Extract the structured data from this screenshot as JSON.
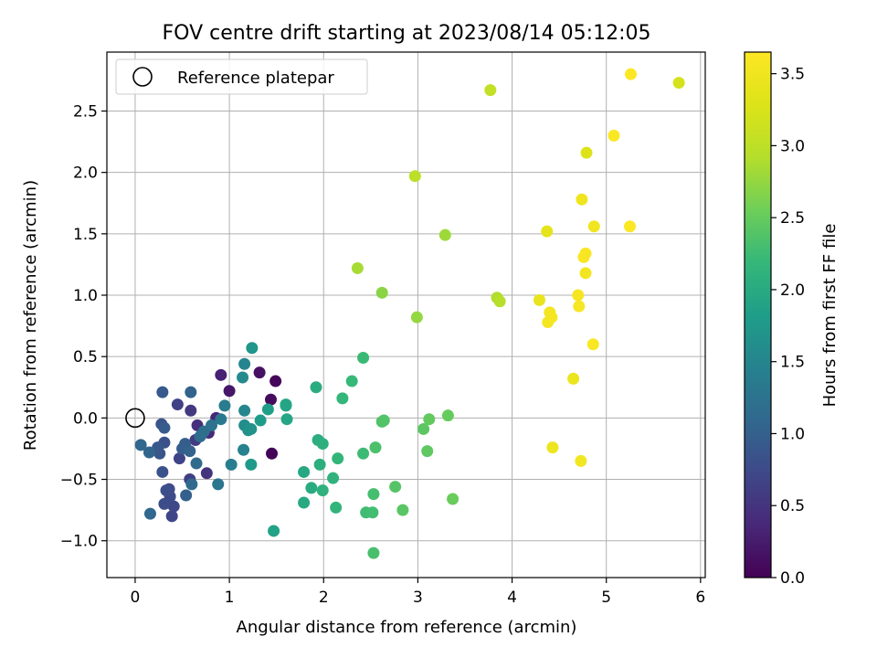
{
  "chart_data": {
    "type": "scatter",
    "title": "FOV centre drift starting at 2023/08/14 05:12:05",
    "xlabel": "Angular distance from reference (arcmin)",
    "ylabel": "Rotation from reference (arcmin)",
    "xlim": [
      -0.3,
      6.05
    ],
    "ylim": [
      -1.3,
      2.98
    ],
    "x_ticks": [
      0,
      1,
      2,
      3,
      4,
      5,
      6
    ],
    "y_ticks": [
      -1.0,
      -0.5,
      0.0,
      0.5,
      1.0,
      1.5,
      2.0,
      2.5
    ],
    "x_tick_labels": [
      "0",
      "1",
      "2",
      "3",
      "4",
      "5",
      "6"
    ],
    "y_tick_labels": [
      "−1.0",
      "−0.5",
      "0.0",
      "0.5",
      "1.0",
      "1.5",
      "2.0",
      "2.5"
    ],
    "grid": true,
    "legend": {
      "position": "top-left",
      "entries": [
        {
          "label": "Reference platepar",
          "marker": "open-circle"
        }
      ]
    },
    "reference_point": {
      "x": 0,
      "y": 0
    },
    "colorbar": {
      "label": "Hours from first FF file",
      "colormap": "viridis",
      "range": [
        0.0,
        3.65
      ],
      "ticks": [
        0.0,
        0.5,
        1.0,
        1.5,
        2.0,
        2.5,
        3.0,
        3.5
      ],
      "tick_labels": [
        "0.0",
        "0.5",
        "1.0",
        "1.5",
        "2.0",
        "2.5",
        "3.0",
        "3.5"
      ]
    },
    "points": [
      {
        "x": 1.45,
        "y": -0.29,
        "c": 0.02
      },
      {
        "x": 1.49,
        "y": 0.3,
        "c": 0.05
      },
      {
        "x": 1.44,
        "y": 0.15,
        "c": 0.1
      },
      {
        "x": 1.32,
        "y": 0.37,
        "c": 0.15
      },
      {
        "x": 1.0,
        "y": 0.22,
        "c": 0.2
      },
      {
        "x": 0.91,
        "y": 0.35,
        "c": 0.3
      },
      {
        "x": 0.86,
        "y": 0.0,
        "c": 0.35
      },
      {
        "x": 0.78,
        "y": -0.12,
        "c": 0.4
      },
      {
        "x": 0.66,
        "y": -0.06,
        "c": 0.45
      },
      {
        "x": 0.76,
        "y": -0.45,
        "c": 0.5
      },
      {
        "x": 0.59,
        "y": 0.06,
        "c": 0.55
      },
      {
        "x": 0.64,
        "y": -0.18,
        "c": 0.6
      },
      {
        "x": 0.58,
        "y": -0.5,
        "c": 0.62
      },
      {
        "x": 0.45,
        "y": 0.11,
        "c": 0.65
      },
      {
        "x": 0.47,
        "y": -0.33,
        "c": 0.68
      },
      {
        "x": 0.39,
        "y": -0.8,
        "c": 0.7
      },
      {
        "x": 0.41,
        "y": -0.72,
        "c": 0.72
      },
      {
        "x": 0.36,
        "y": -0.58,
        "c": 0.74
      },
      {
        "x": 0.37,
        "y": -0.64,
        "c": 0.76
      },
      {
        "x": 0.31,
        "y": -0.7,
        "c": 0.78
      },
      {
        "x": 0.33,
        "y": -0.59,
        "c": 0.8
      },
      {
        "x": 0.31,
        "y": -0.2,
        "c": 0.82
      },
      {
        "x": 0.29,
        "y": -0.44,
        "c": 0.84
      },
      {
        "x": 0.28,
        "y": -0.05,
        "c": 0.86
      },
      {
        "x": 0.26,
        "y": -0.29,
        "c": 0.88
      },
      {
        "x": 0.24,
        "y": -0.24,
        "c": 0.9
      },
      {
        "x": 0.29,
        "y": 0.21,
        "c": 0.92
      },
      {
        "x": 0.31,
        "y": -0.08,
        "c": 0.94
      },
      {
        "x": 0.5,
        "y": -0.25,
        "c": 0.96
      },
      {
        "x": 0.53,
        "y": -0.21,
        "c": 0.98
      },
      {
        "x": 0.54,
        "y": -0.63,
        "c": 1.0
      },
      {
        "x": 0.58,
        "y": -0.27,
        "c": 1.02
      },
      {
        "x": 0.59,
        "y": 0.21,
        "c": 1.04
      },
      {
        "x": 0.15,
        "y": -0.28,
        "c": 1.06
      },
      {
        "x": 0.06,
        "y": -0.22,
        "c": 1.08
      },
      {
        "x": 0.16,
        "y": -0.78,
        "c": 1.1
      },
      {
        "x": 0.6,
        "y": -0.54,
        "c": 1.12
      },
      {
        "x": 0.65,
        "y": -0.37,
        "c": 1.14
      },
      {
        "x": 0.69,
        "y": -0.15,
        "c": 1.16
      },
      {
        "x": 0.73,
        "y": -0.11,
        "c": 1.2
      },
      {
        "x": 0.81,
        "y": -0.06,
        "c": 1.24
      },
      {
        "x": 0.88,
        "y": -0.54,
        "c": 1.28
      },
      {
        "x": 0.91,
        "y": -0.01,
        "c": 1.32
      },
      {
        "x": 0.95,
        "y": 0.1,
        "c": 1.36
      },
      {
        "x": 1.02,
        "y": -0.38,
        "c": 1.4
      },
      {
        "x": 1.15,
        "y": -0.26,
        "c": 1.44
      },
      {
        "x": 1.16,
        "y": 0.44,
        "c": 1.48
      },
      {
        "x": 1.16,
        "y": 0.06,
        "c": 1.52
      },
      {
        "x": 1.14,
        "y": 0.33,
        "c": 1.56
      },
      {
        "x": 1.16,
        "y": -0.06,
        "c": 1.6
      },
      {
        "x": 1.2,
        "y": -0.1,
        "c": 1.64
      },
      {
        "x": 1.23,
        "y": -0.09,
        "c": 1.68
      },
      {
        "x": 1.24,
        "y": 0.57,
        "c": 1.72
      },
      {
        "x": 1.23,
        "y": -0.38,
        "c": 1.76
      },
      {
        "x": 1.33,
        "y": -0.02,
        "c": 1.8
      },
      {
        "x": 1.41,
        "y": 0.07,
        "c": 1.84
      },
      {
        "x": 1.47,
        "y": -0.92,
        "c": 1.88
      },
      {
        "x": 1.6,
        "y": 0.1,
        "c": 1.9
      },
      {
        "x": 1.6,
        "y": 0.11,
        "c": 1.92
      },
      {
        "x": 1.61,
        "y": -0.01,
        "c": 1.94
      },
      {
        "x": 1.79,
        "y": -0.44,
        "c": 1.96
      },
      {
        "x": 1.79,
        "y": -0.69,
        "c": 1.98
      },
      {
        "x": 1.87,
        "y": -0.57,
        "c": 2.0
      },
      {
        "x": 1.92,
        "y": 0.25,
        "c": 2.02
      },
      {
        "x": 1.94,
        "y": -0.18,
        "c": 2.04
      },
      {
        "x": 1.96,
        "y": -0.38,
        "c": 2.06
      },
      {
        "x": 1.99,
        "y": -0.21,
        "c": 2.08
      },
      {
        "x": 1.99,
        "y": -0.59,
        "c": 2.1
      },
      {
        "x": 2.1,
        "y": -0.49,
        "c": 2.12
      },
      {
        "x": 2.13,
        "y": -0.73,
        "c": 2.14
      },
      {
        "x": 2.15,
        "y": -0.33,
        "c": 2.16
      },
      {
        "x": 2.2,
        "y": 0.16,
        "c": 2.18
      },
      {
        "x": 2.3,
        "y": 0.3,
        "c": 2.2
      },
      {
        "x": 2.42,
        "y": 0.49,
        "c": 2.22
      },
      {
        "x": 2.42,
        "y": -0.29,
        "c": 2.24
      },
      {
        "x": 2.45,
        "y": -0.77,
        "c": 2.26
      },
      {
        "x": 2.52,
        "y": -0.77,
        "c": 2.28
      },
      {
        "x": 2.53,
        "y": -0.62,
        "c": 2.3
      },
      {
        "x": 2.53,
        "y": -1.1,
        "c": 2.32
      },
      {
        "x": 2.55,
        "y": -0.24,
        "c": 2.34
      },
      {
        "x": 2.62,
        "y": -0.03,
        "c": 2.36
      },
      {
        "x": 2.64,
        "y": -0.02,
        "c": 2.38
      },
      {
        "x": 2.76,
        "y": -0.56,
        "c": 2.4
      },
      {
        "x": 2.84,
        "y": -0.75,
        "c": 2.42
      },
      {
        "x": 3.06,
        "y": -0.09,
        "c": 2.44
      },
      {
        "x": 3.1,
        "y": -0.27,
        "c": 2.46
      },
      {
        "x": 3.12,
        "y": -0.01,
        "c": 2.48
      },
      {
        "x": 3.32,
        "y": 0.02,
        "c": 2.5
      },
      {
        "x": 3.37,
        "y": -0.66,
        "c": 2.52
      },
      {
        "x": 2.62,
        "y": 1.02,
        "c": 2.7
      },
      {
        "x": 2.99,
        "y": 0.82,
        "c": 2.75
      },
      {
        "x": 3.29,
        "y": 1.49,
        "c": 2.8
      },
      {
        "x": 2.36,
        "y": 1.22,
        "c": 2.85
      },
      {
        "x": 3.84,
        "y": 0.98,
        "c": 2.9
      },
      {
        "x": 3.87,
        "y": 0.95,
        "c": 2.93
      },
      {
        "x": 2.97,
        "y": 1.97,
        "c": 2.98
      },
      {
        "x": 3.77,
        "y": 2.67,
        "c": 3.05
      },
      {
        "x": 5.77,
        "y": 2.73,
        "c": 3.2
      },
      {
        "x": 4.79,
        "y": 2.16,
        "c": 3.3
      },
      {
        "x": 4.37,
        "y": 1.52,
        "c": 3.38
      },
      {
        "x": 4.29,
        "y": 0.96,
        "c": 3.42
      },
      {
        "x": 4.65,
        "y": 0.32,
        "c": 3.45
      },
      {
        "x": 4.43,
        "y": -0.24,
        "c": 3.47
      },
      {
        "x": 4.74,
        "y": 1.78,
        "c": 3.49
      },
      {
        "x": 4.87,
        "y": 1.56,
        "c": 3.51
      },
      {
        "x": 4.73,
        "y": -0.35,
        "c": 3.52
      },
      {
        "x": 4.78,
        "y": 1.18,
        "c": 3.53
      },
      {
        "x": 4.4,
        "y": 0.86,
        "c": 3.54
      },
      {
        "x": 4.38,
        "y": 0.78,
        "c": 3.55
      },
      {
        "x": 4.42,
        "y": 0.82,
        "c": 3.56
      },
      {
        "x": 4.7,
        "y": 1.0,
        "c": 3.57
      },
      {
        "x": 4.71,
        "y": 0.91,
        "c": 3.58
      },
      {
        "x": 4.76,
        "y": 1.31,
        "c": 3.59
      },
      {
        "x": 4.78,
        "y": 1.34,
        "c": 3.6
      },
      {
        "x": 4.86,
        "y": 0.6,
        "c": 3.61
      },
      {
        "x": 5.08,
        "y": 2.3,
        "c": 3.62
      },
      {
        "x": 5.25,
        "y": 1.56,
        "c": 3.63
      },
      {
        "x": 5.26,
        "y": 2.8,
        "c": 3.64
      }
    ]
  }
}
